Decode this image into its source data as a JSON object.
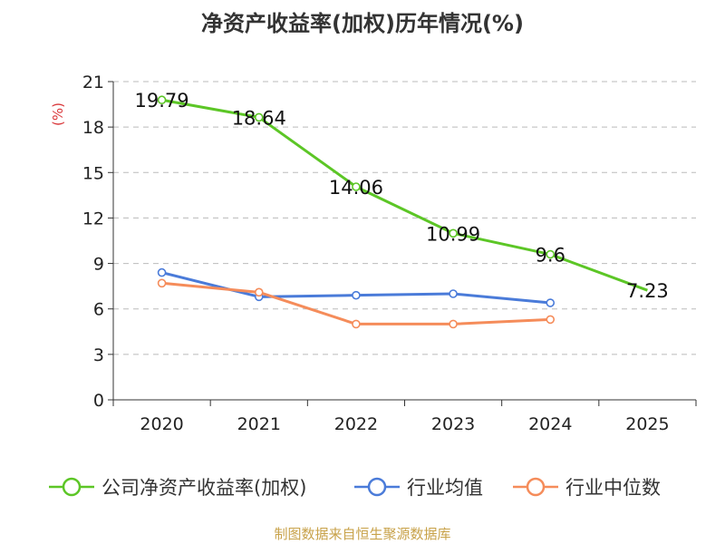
{
  "chart_data": {
    "type": "line",
    "title": "净资产收益率(加权)历年情况(%)",
    "ylabel": "(%)",
    "xlabel": "",
    "categories": [
      "2020",
      "2021",
      "2022",
      "2023",
      "2024",
      "2025"
    ],
    "ylim": [
      0,
      21
    ],
    "yticks": [
      0,
      3,
      6,
      9,
      12,
      15,
      18,
      21
    ],
    "grid": true,
    "legend_position": "bottom",
    "series": [
      {
        "name": "公司净资产收益率(加权)",
        "color": "#5cc626",
        "values": [
          19.79,
          18.64,
          14.06,
          10.99,
          9.6,
          7.23
        ],
        "labels": [
          "19.79",
          "18.64",
          "14.06",
          "10.99",
          "9.6",
          "7.23"
        ],
        "show_labels": true
      },
      {
        "name": "行业均值",
        "color": "#4a7bd9",
        "values": [
          8.4,
          6.8,
          6.9,
          7.0,
          6.4,
          null
        ],
        "show_labels": false
      },
      {
        "name": "行业中位数",
        "color": "#f58c5a",
        "values": [
          7.7,
          7.1,
          5.0,
          5.0,
          5.3,
          null
        ],
        "show_labels": false
      }
    ]
  },
  "source": {
    "text": "制图数据来自恒生聚源数据库",
    "color": "#c8a24a"
  },
  "colors": {
    "axis": "#333333",
    "grid": "#bbbbbb",
    "unit": "#d9373a"
  }
}
